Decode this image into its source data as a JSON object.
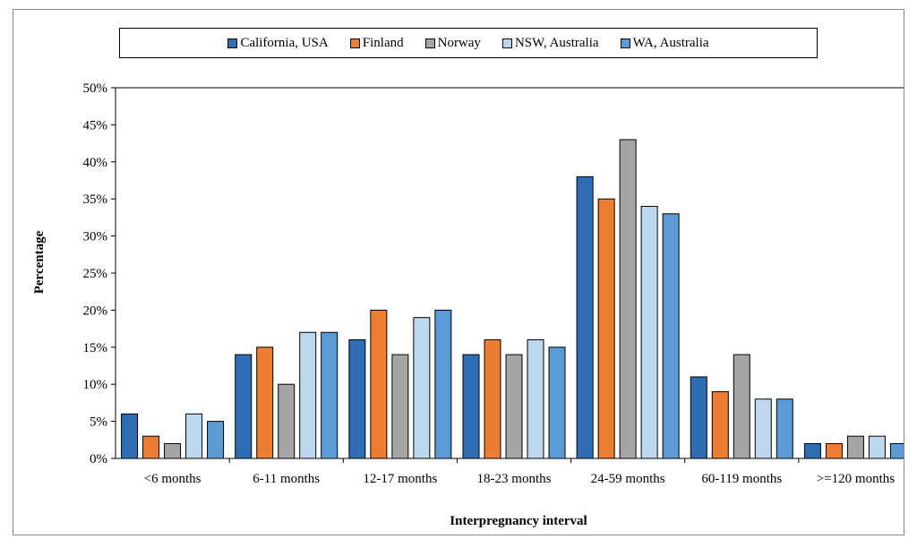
{
  "chart_data": {
    "type": "bar",
    "categories": [
      "<6 months",
      "6-11 months",
      "12-17 months",
      "18-23 months",
      "24-59 months",
      "60-119 months",
      ">=120 months"
    ],
    "series": [
      {
        "name": "California, USA",
        "color": "#2e6db4",
        "values": [
          6,
          14,
          16,
          14,
          38,
          11,
          2
        ]
      },
      {
        "name": "Finland",
        "color": "#ed7d31",
        "values": [
          3,
          15,
          20,
          16,
          35,
          9,
          2
        ]
      },
      {
        "name": "Norway",
        "color": "#a5a5a5",
        "values": [
          2,
          10,
          14,
          14,
          43,
          14,
          3
        ]
      },
      {
        "name": "NSW, Australia",
        "color": "#bdd7ee",
        "values": [
          6,
          17,
          19,
          16,
          34,
          8,
          3
        ]
      },
      {
        "name": "WA, Australia",
        "color": "#5b9bd5",
        "values": [
          5,
          17,
          20,
          15,
          33,
          8,
          2
        ]
      }
    ],
    "xlabel": "Interpregnancy interval",
    "ylabel": "Percentage",
    "ylim": [
      0,
      50
    ],
    "yticks": [
      "0%",
      "5%",
      "10%",
      "15%",
      "20%",
      "25%",
      "30%",
      "35%",
      "40%",
      "45%",
      "50%"
    ],
    "grid": false,
    "legend": "top"
  }
}
